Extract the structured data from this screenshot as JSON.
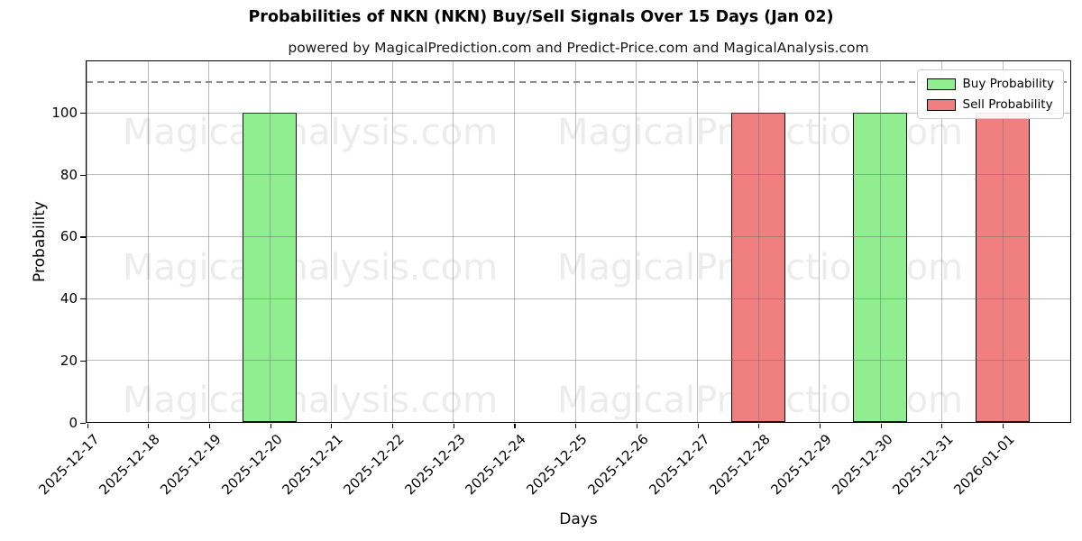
{
  "title": "Probabilities of NKN (NKN) Buy/Sell Signals Over 15 Days (Jan 02)",
  "subtitle": "powered by MagicalPrediction.com and Predict-Price.com and MagicalAnalysis.com",
  "watermarks": {
    "left_text": "MagicalAnalysis.com",
    "right_text": "MagicalPrediction.com"
  },
  "legend": {
    "items": [
      {
        "label": "Buy Probability",
        "color": "#90EE90"
      },
      {
        "label": "Sell Probability",
        "color": "#F08080"
      }
    ]
  },
  "chart_data": {
    "type": "bar",
    "title": "Probabilities of NKN (NKN) Buy/Sell Signals Over 15 Days (Jan 02)",
    "subtitle": "powered by MagicalPrediction.com and Predict-Price.com and MagicalAnalysis.com",
    "xlabel": "Days",
    "ylabel": "Probability",
    "categories": [
      "2025-12-17",
      "2025-12-18",
      "2025-12-19",
      "2025-12-20",
      "2025-12-21",
      "2025-12-22",
      "2025-12-23",
      "2025-12-24",
      "2025-12-25",
      "2025-12-26",
      "2025-12-27",
      "2025-12-28",
      "2025-12-29",
      "2025-12-30",
      "2025-12-31",
      "2026-01-01"
    ],
    "series": [
      {
        "name": "Buy Probability",
        "color": "#90EE90",
        "values": [
          0,
          0,
          0,
          100,
          0,
          0,
          0,
          0,
          0,
          0,
          0,
          0,
          0,
          100,
          0,
          0
        ]
      },
      {
        "name": "Sell Probability",
        "color": "#F08080",
        "values": [
          0,
          0,
          0,
          0,
          0,
          0,
          0,
          0,
          0,
          0,
          0,
          100,
          0,
          0,
          0,
          100
        ]
      }
    ],
    "ylim": [
      0,
      116.5
    ],
    "yticks": [
      0,
      20,
      40,
      60,
      80,
      100
    ],
    "threshold_line": 110,
    "threshold_style": "dashed gray",
    "grid": true,
    "bar_edge_color": "#000000",
    "grid_color": "#b0b0b0",
    "legend_position": "upper right"
  }
}
